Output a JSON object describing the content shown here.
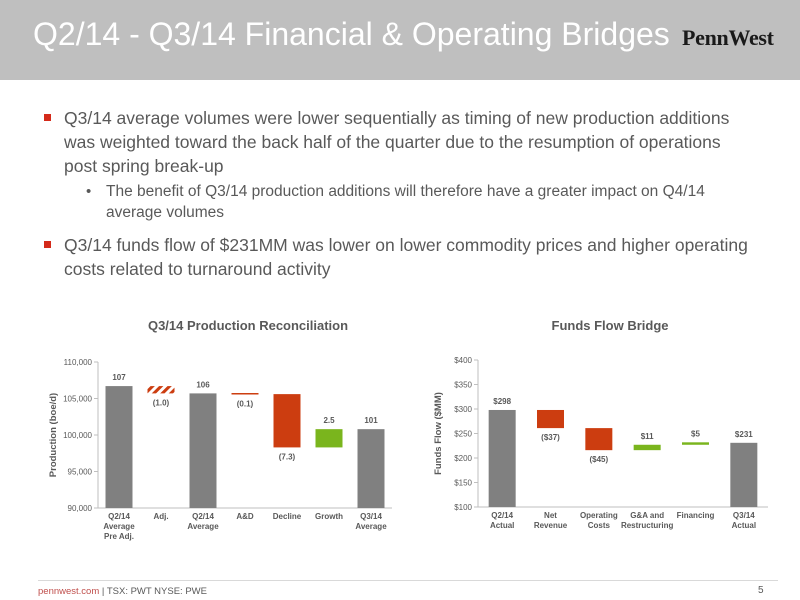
{
  "header": {
    "title": "Q2/14 - Q3/14 Financial & Operating Bridges",
    "logo_text": "PennWest",
    "background": "#bfbfbf"
  },
  "bullets": [
    {
      "text": "Q3/14 average volumes were lower sequentially as timing of new production additions was weighted toward the back half of the quarter due to the resumption of operations post spring break-up",
      "sub": [
        "The benefit of Q3/14 production additions will therefore have a greater impact on Q4/14 average volumes"
      ]
    },
    {
      "text": "Q3/14 funds flow of $231MM was lower on lower commodity prices and higher operating costs related to turnaround activity",
      "sub": []
    }
  ],
  "footer": {
    "site": "pennwest.com",
    "ticker": " | TSX: PWT  NYSE: PWE",
    "page": "5"
  },
  "colors": {
    "total": "#808080",
    "negative": "#cc3d10",
    "positive": "#7ab51d",
    "adjustment": "#cc3d10",
    "accent_bullet": "#d42a1a"
  },
  "chart_data": [
    {
      "type": "bar",
      "subtype": "waterfall",
      "title": "Q3/14 Production Reconciliation",
      "ylabel": "Production (boe/d)",
      "ylim": [
        90000,
        110000
      ],
      "yticks": [
        90000,
        95000,
        100000,
        105000,
        110000
      ],
      "ytick_labels": [
        "90,000",
        "95,000",
        "100,000",
        "105,000",
        "110,000"
      ],
      "grid": false,
      "categories": [
        [
          "Q2/14",
          "Average",
          "Pre Adj."
        ],
        [
          "Adj."
        ],
        [
          "Q2/14",
          "Average"
        ],
        [
          "A&D"
        ],
        [
          "Decline"
        ],
        [
          "Growth"
        ],
        [
          "Q3/14",
          "Average"
        ]
      ],
      "bars": [
        {
          "kind": "total",
          "start": 90000,
          "end": 106700,
          "label": "107"
        },
        {
          "kind": "adjustment",
          "start": 106700,
          "end": 105700,
          "label": "(1.0)"
        },
        {
          "kind": "total",
          "start": 90000,
          "end": 105700,
          "label": "106"
        },
        {
          "kind": "negative",
          "start": 105700,
          "end": 105600,
          "label": "(0.1)"
        },
        {
          "kind": "negative",
          "start": 105600,
          "end": 98300,
          "label": "(7.3)"
        },
        {
          "kind": "positive",
          "start": 98300,
          "end": 100800,
          "label": "2.5"
        },
        {
          "kind": "total",
          "start": 90000,
          "end": 100800,
          "label": "101"
        }
      ]
    },
    {
      "type": "bar",
      "subtype": "waterfall",
      "title": "Funds Flow Bridge",
      "ylabel": "Funds Flow ($MM)",
      "ylim": [
        100,
        400
      ],
      "yticks": [
        100,
        150,
        200,
        250,
        300,
        350,
        400
      ],
      "ytick_labels": [
        "$100",
        "$150",
        "$200",
        "$250",
        "$300",
        "$350",
        "$400"
      ],
      "grid": false,
      "categories": [
        [
          "Q2/14",
          "Actual"
        ],
        [
          "Net",
          "Revenue"
        ],
        [
          "Operating",
          "Costs"
        ],
        [
          "G&A and",
          "Restructuring"
        ],
        [
          "Financing"
        ],
        [
          "Q3/14",
          "Actual"
        ]
      ],
      "bars": [
        {
          "kind": "total",
          "start": 100,
          "end": 298,
          "label": "$298"
        },
        {
          "kind": "negative",
          "start": 298,
          "end": 261,
          "label": "($37)"
        },
        {
          "kind": "negative",
          "start": 261,
          "end": 216,
          "label": "($45)"
        },
        {
          "kind": "positive",
          "start": 216,
          "end": 227,
          "label": "$11"
        },
        {
          "kind": "positive",
          "start": 227,
          "end": 232,
          "label": "$5"
        },
        {
          "kind": "total",
          "start": 100,
          "end": 231,
          "label": "$231"
        }
      ]
    }
  ]
}
